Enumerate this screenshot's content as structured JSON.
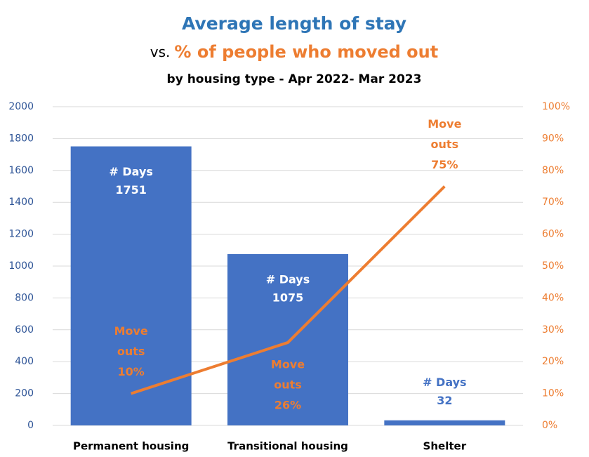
{
  "chart_data": {
    "type": "bar_line",
    "title": "Average length of stay",
    "title_line2_prefix": "vs.",
    "title_line2": "% of people who moved out",
    "subtitle": "by housing type - Apr 2022- Mar 2023",
    "categories": [
      "Permanent housing",
      "Transitional housing",
      "Shelter"
    ],
    "series": [
      {
        "name": "# Days",
        "type": "bar",
        "color": "#4472c4",
        "values": [
          1751,
          1075,
          32
        ]
      },
      {
        "name": "Move outs",
        "type": "line",
        "axis": "y2",
        "color": "#ed7d31",
        "values": [
          10,
          26,
          75
        ],
        "value_labels": [
          "10%",
          "26%",
          "75%"
        ],
        "label_lines": [
          "Move",
          "outs"
        ]
      }
    ],
    "ylim": [
      0,
      2000
    ],
    "yticks": [
      0,
      200,
      400,
      600,
      800,
      1000,
      1200,
      1400,
      1600,
      1800,
      2000
    ],
    "y2lim": [
      0,
      100
    ],
    "y2ticks": [
      {
        "value": 0,
        "label": "0%"
      },
      {
        "value": 10,
        "label": "10%"
      },
      {
        "value": 20,
        "label": "20%"
      },
      {
        "value": 30,
        "label": "30%"
      },
      {
        "value": 40,
        "label": "40%"
      },
      {
        "value": 50,
        "label": "50%"
      },
      {
        "value": 60,
        "label": "60%"
      },
      {
        "value": 70,
        "label": "70%"
      },
      {
        "value": 80,
        "label": "80%"
      },
      {
        "value": 90,
        "label": "90%"
      },
      {
        "value": 100,
        "label": "100%"
      }
    ],
    "grid": true
  }
}
